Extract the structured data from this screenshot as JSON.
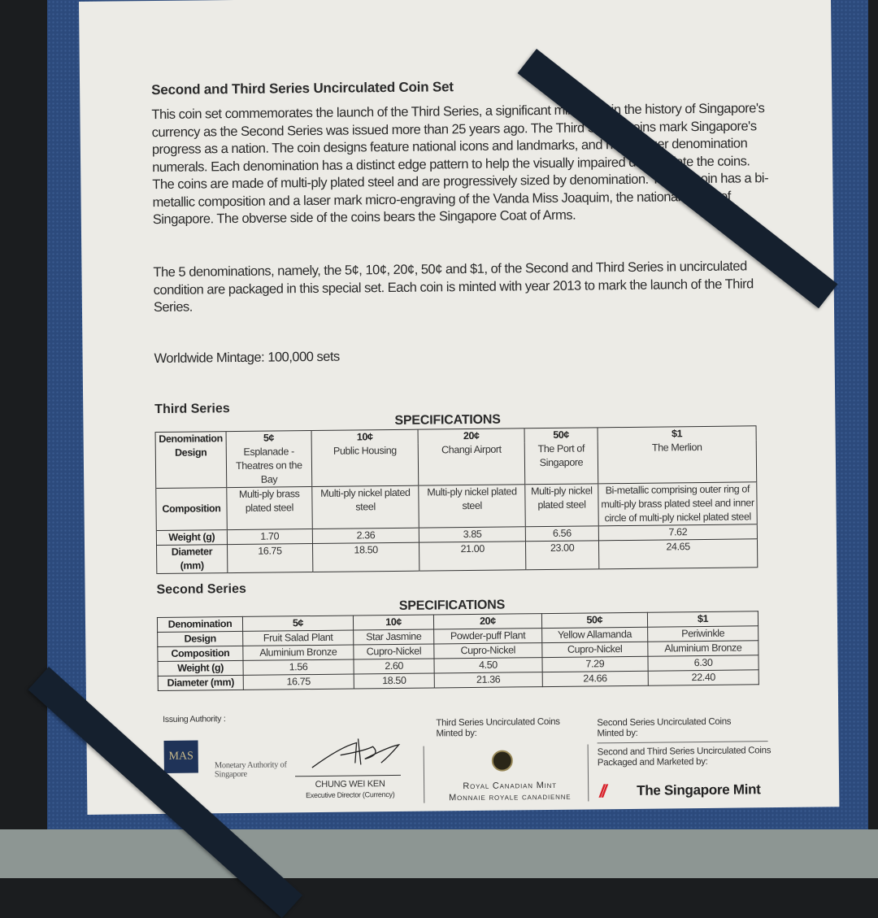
{
  "document": {
    "title": "Second and Third Series Uncirculated Coin Set",
    "paragraph1": "This coin set commemorates the launch of the Third Series, a significant milestone in the history of Singapore's currency as the Second Series was issued more than 25 years ago. The Third Series coins mark Singapore's progress as a nation. The coin designs feature national icons and landmarks, and have larger denomination numerals. Each denomination has a distinct edge pattern to help the visually impaired differentiate the coins. The coins are made of multi-ply plated steel and are progressively sized by denomination. The $1 coin has a bi-metallic composition and a laser mark micro-engraving of the Vanda Miss Joaquim, the national flower of Singapore. The obverse side of the coins bears the Singapore Coat of Arms.",
    "paragraph2": "The 5 denominations, namely, the 5¢, 10¢, 20¢, 50¢ and $1, of the Second and Third Series in uncirculated condition are packaged in this special set. Each coin is minted with year 2013 to mark the launch of the Third Series.",
    "mintage": "Worldwide Mintage:  100,000 sets"
  },
  "third_series": {
    "heading": "Third Series",
    "spec_title": "SPECIFICATIONS",
    "row_labels": [
      "Denomination",
      "Design",
      "Composition",
      "Weight (g)",
      "Diameter (mm)"
    ],
    "denominations": [
      "5¢",
      "10¢",
      "20¢",
      "50¢",
      "$1"
    ],
    "design": [
      "Esplanade - Theatres on the Bay",
      "Public Housing",
      "Changi Airport",
      "The Port of Singapore",
      "The Merlion"
    ],
    "composition": [
      "Multi-ply brass plated steel",
      "Multi-ply nickel plated steel",
      "Multi-ply nickel plated steel",
      "Multi-ply nickel plated steel",
      "Bi-metallic comprising outer ring of multi-ply brass plated steel and inner circle of multi-ply nickel plated steel"
    ],
    "weight": [
      "1.70",
      "2.36",
      "3.85",
      "6.56",
      "7.62"
    ],
    "diameter": [
      "16.75",
      "18.50",
      "21.00",
      "23.00",
      "24.65"
    ]
  },
  "second_series": {
    "heading": "Second Series",
    "spec_title": "SPECIFICATIONS",
    "row_labels": [
      "Denomination",
      "Design",
      "Composition",
      "Weight (g)",
      "Diameter (mm)"
    ],
    "denominations": [
      "5¢",
      "10¢",
      "20¢",
      "50¢",
      "$1"
    ],
    "design": [
      "Fruit Salad Plant",
      "Star Jasmine",
      "Powder-puff Plant",
      "Yellow Allamanda",
      "Periwinkle"
    ],
    "composition": [
      "Aluminium Bronze",
      "Cupro-Nickel",
      "Cupro-Nickel",
      "Cupro-Nickel",
      "Aluminium Bronze"
    ],
    "weight": [
      "1.56",
      "2.60",
      "4.50",
      "7.29",
      "6.30"
    ],
    "diameter": [
      "16.75",
      "18.50",
      "21.36",
      "24.66",
      "22.40"
    ]
  },
  "footer": {
    "issuing_label": "Issuing Authority :",
    "mas_logo": "MAS",
    "mas_name": "Monetary Authority of Singapore",
    "signatory_name": "CHUNG WEI KEN",
    "signatory_title": "Executive Director (Currency)",
    "third_minted_label": "Third Series Uncirculated Coins Minted by:",
    "rcm_name_en": "Royal Canadian Mint",
    "rcm_name_fr": "Monnaie royale canadienne",
    "second_minted_label": "Second Series Uncirculated Coins Minted by:",
    "packaged_label": "Second and Third Series Uncirculated Coins Packaged and Marketed by:",
    "singapore_mint": "The Singapore Mint"
  },
  "colors": {
    "folder": "#2c4a7c",
    "paper": "#ecebe6",
    "strap": "#15202e",
    "mint_logo": "#d8202a"
  }
}
